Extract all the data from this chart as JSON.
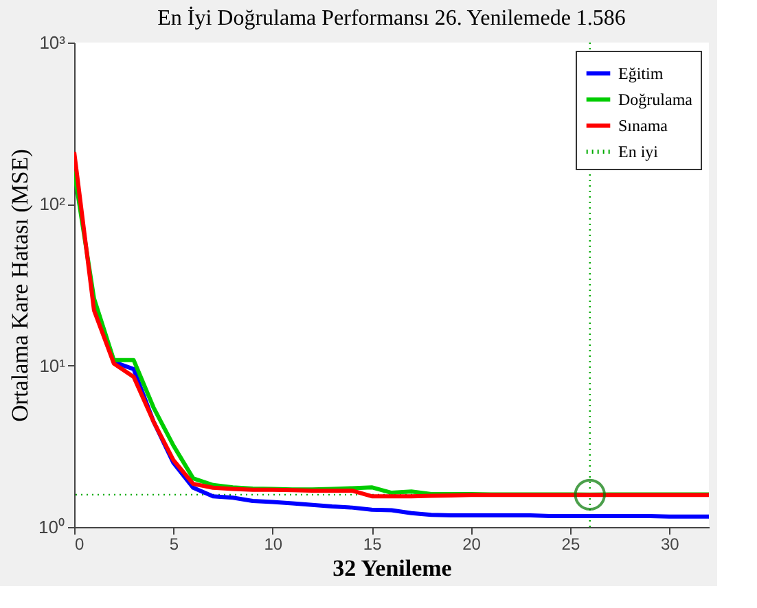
{
  "chart_data": {
    "type": "line",
    "title": "En İyi Doğrulama Performansı 26. Yenilemede 1.586",
    "xlabel": "32 Yenileme",
    "ylabel": "Ortalama Kare Hatası (MSE)",
    "x": [
      0,
      1,
      2,
      3,
      4,
      5,
      6,
      7,
      8,
      9,
      10,
      11,
      12,
      13,
      14,
      15,
      16,
      17,
      18,
      19,
      20,
      21,
      22,
      23,
      24,
      25,
      26,
      27,
      28,
      29,
      30,
      31,
      32
    ],
    "series": [
      {
        "name": "Eğitim",
        "color": "#0000ff",
        "values": [
          null,
          null,
          10.5,
          9.5,
          4.5,
          2.5,
          1.75,
          1.55,
          1.52,
          1.45,
          1.43,
          1.4,
          1.37,
          1.34,
          1.32,
          1.28,
          1.27,
          1.22,
          1.19,
          1.18,
          1.18,
          1.18,
          1.18,
          1.18,
          1.17,
          1.17,
          1.17,
          1.17,
          1.17,
          1.17,
          1.16,
          1.16,
          1.16
        ]
      },
      {
        "name": "Doğrulama",
        "color": "#00cc00",
        "values": [
          160,
          26,
          10.8,
          10.8,
          5.5,
          3.2,
          2.0,
          1.82,
          1.76,
          1.73,
          1.72,
          1.71,
          1.71,
          1.72,
          1.74,
          1.76,
          1.63,
          1.66,
          1.6,
          1.6,
          1.6,
          1.59,
          1.59,
          1.59,
          1.59,
          1.59,
          1.586,
          1.59,
          1.59,
          1.59,
          1.59,
          1.59,
          1.59
        ]
      },
      {
        "name": "Sınama",
        "color": "#ff0000",
        "values": [
          210,
          22,
          10.3,
          8.5,
          4.5,
          2.6,
          1.85,
          1.75,
          1.72,
          1.7,
          1.7,
          1.69,
          1.68,
          1.68,
          1.68,
          1.55,
          1.55,
          1.55,
          1.56,
          1.57,
          1.58,
          1.58,
          1.58,
          1.58,
          1.58,
          1.58,
          1.58,
          1.58,
          1.58,
          1.58,
          1.58,
          1.58,
          1.58
        ]
      },
      {
        "type": "scatter",
        "color": "#007700",
        "marker": "circle",
        "x": [
          26
        ],
        "values": [
          1.586
        ]
      }
    ],
    "ref_lines": [
      {
        "axis": "x",
        "value": 26,
        "label": "En iyi",
        "color": "#00aa00",
        "line_style": "dotted"
      },
      {
        "axis": "y",
        "value": 1.586,
        "color": "#00aa00",
        "line_style": "dotted"
      }
    ],
    "log": "y",
    "xlim": [
      0,
      32
    ],
    "ylim": [
      1,
      1000
    ],
    "xticks": [
      0,
      5,
      10,
      15,
      20,
      25,
      30
    ],
    "yticks": [
      {
        "value": 1,
        "label": "10⁰"
      },
      {
        "value": 10,
        "label": "10¹"
      },
      {
        "value": 100,
        "label": "10²"
      },
      {
        "value": 1000,
        "label": "10³"
      }
    ],
    "grid": false,
    "legend": "top right",
    "marker": "none",
    "line_style": "solid"
  }
}
